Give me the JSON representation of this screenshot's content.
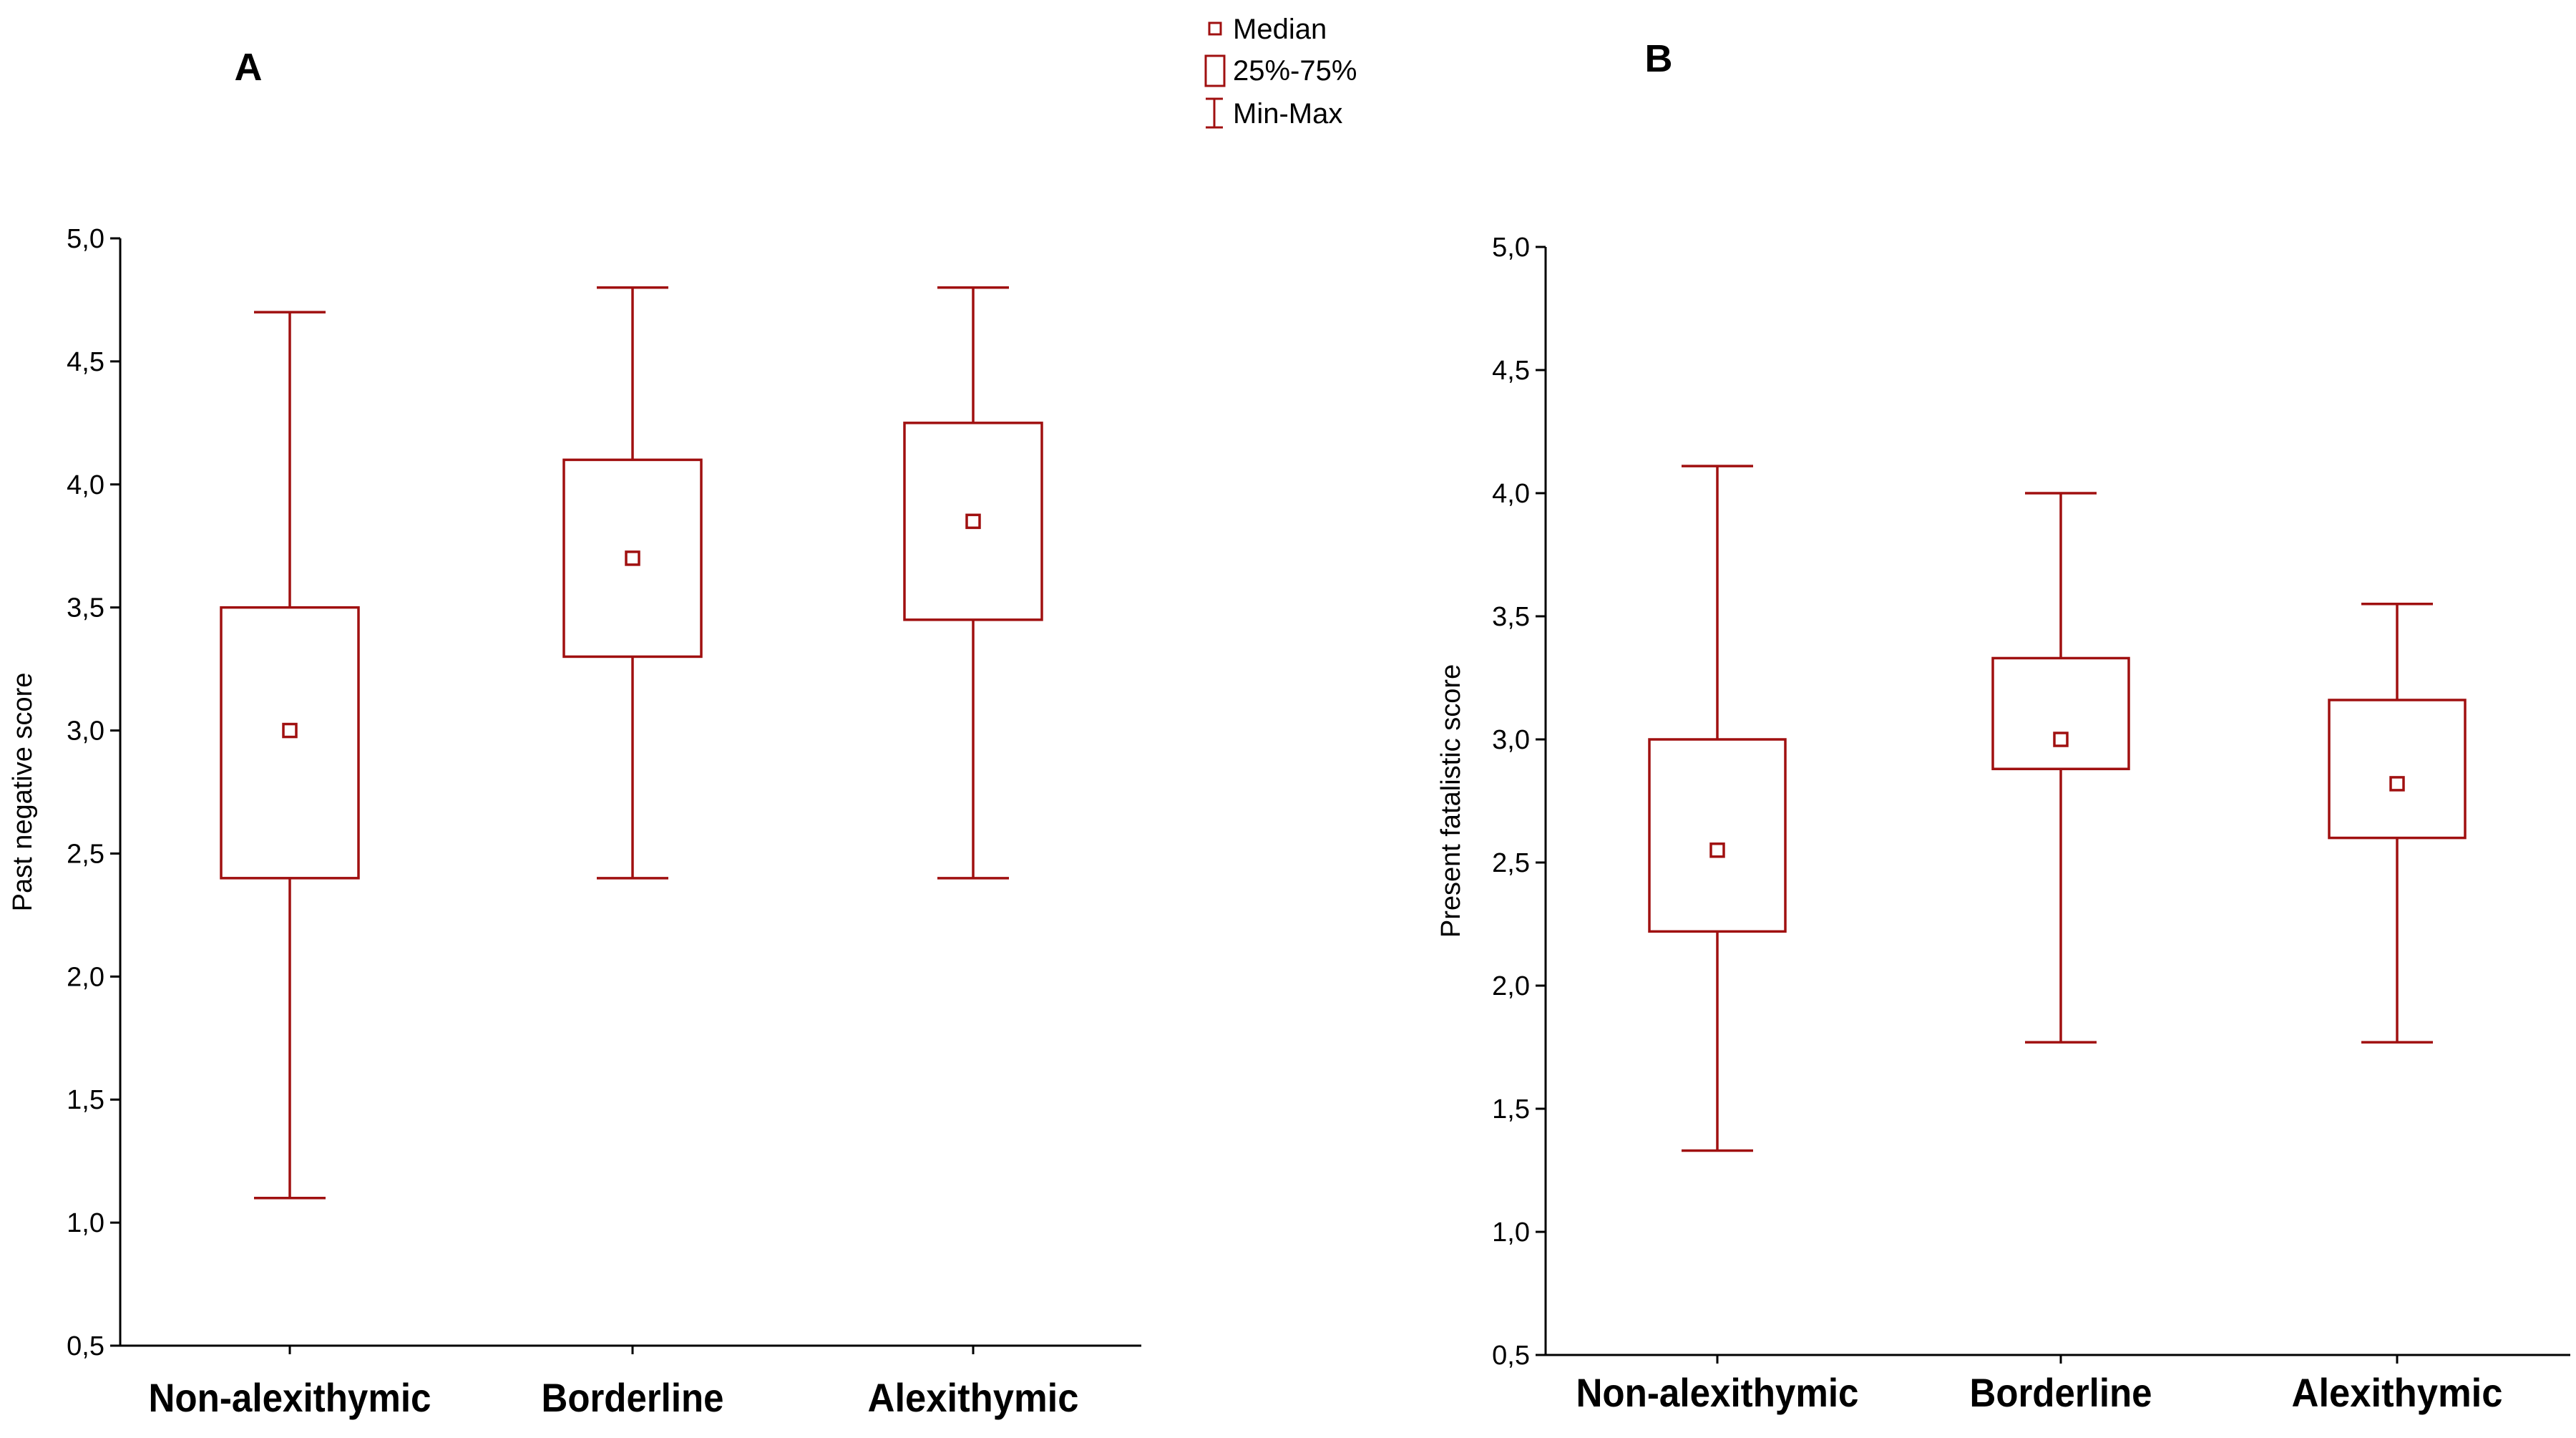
{
  "legend": {
    "items": [
      {
        "label": "Median",
        "symbol": "median"
      },
      {
        "label": "25%-75%",
        "symbol": "box"
      },
      {
        "label": "Min-Max",
        "symbol": "whisker"
      }
    ]
  },
  "chart_data": [
    {
      "type": "box",
      "panel_label": "A",
      "ylabel": "Past negative score",
      "ylim": [
        0.5,
        5.0
      ],
      "yticks": [
        0.5,
        1.0,
        1.5,
        2.0,
        2.5,
        3.0,
        3.5,
        4.0,
        4.5,
        5.0
      ],
      "ytick_labels": [
        "0,5",
        "1,0",
        "1,5",
        "2,0",
        "2,5",
        "3,0",
        "3,5",
        "4,0",
        "4,5",
        "5,0"
      ],
      "categories": [
        "Non-alexithymic",
        "Borderline",
        "Alexithymic"
      ],
      "boxes": [
        {
          "min": 1.1,
          "q1": 2.4,
          "median": 3.0,
          "q3": 3.5,
          "max": 4.7
        },
        {
          "min": 2.4,
          "q1": 3.3,
          "median": 3.7,
          "q3": 4.1,
          "max": 4.8
        },
        {
          "min": 2.4,
          "q1": 3.45,
          "median": 3.85,
          "q3": 4.25,
          "max": 4.8
        }
      ],
      "color": "#a01010"
    },
    {
      "type": "box",
      "panel_label": "B",
      "ylabel": "Present fatalistic score",
      "ylim": [
        0.5,
        5.0
      ],
      "yticks": [
        0.5,
        1.0,
        1.5,
        2.0,
        2.5,
        3.0,
        3.5,
        4.0,
        4.5,
        5.0
      ],
      "ytick_labels": [
        "0,5",
        "1,0",
        "1,5",
        "2,0",
        "2,5",
        "3,0",
        "3,5",
        "4,0",
        "4,5",
        "5,0"
      ],
      "categories": [
        "Non-alexithymic",
        "Borderline",
        "Alexithymic"
      ],
      "boxes": [
        {
          "min": 1.33,
          "q1": 2.22,
          "median": 2.55,
          "q3": 3.0,
          "max": 4.11
        },
        {
          "min": 1.77,
          "q1": 2.88,
          "median": 3.0,
          "q3": 3.33,
          "max": 4.0
        },
        {
          "min": 1.77,
          "q1": 2.6,
          "median": 2.82,
          "q3": 3.16,
          "max": 3.55
        }
      ],
      "color": "#a01010"
    }
  ]
}
